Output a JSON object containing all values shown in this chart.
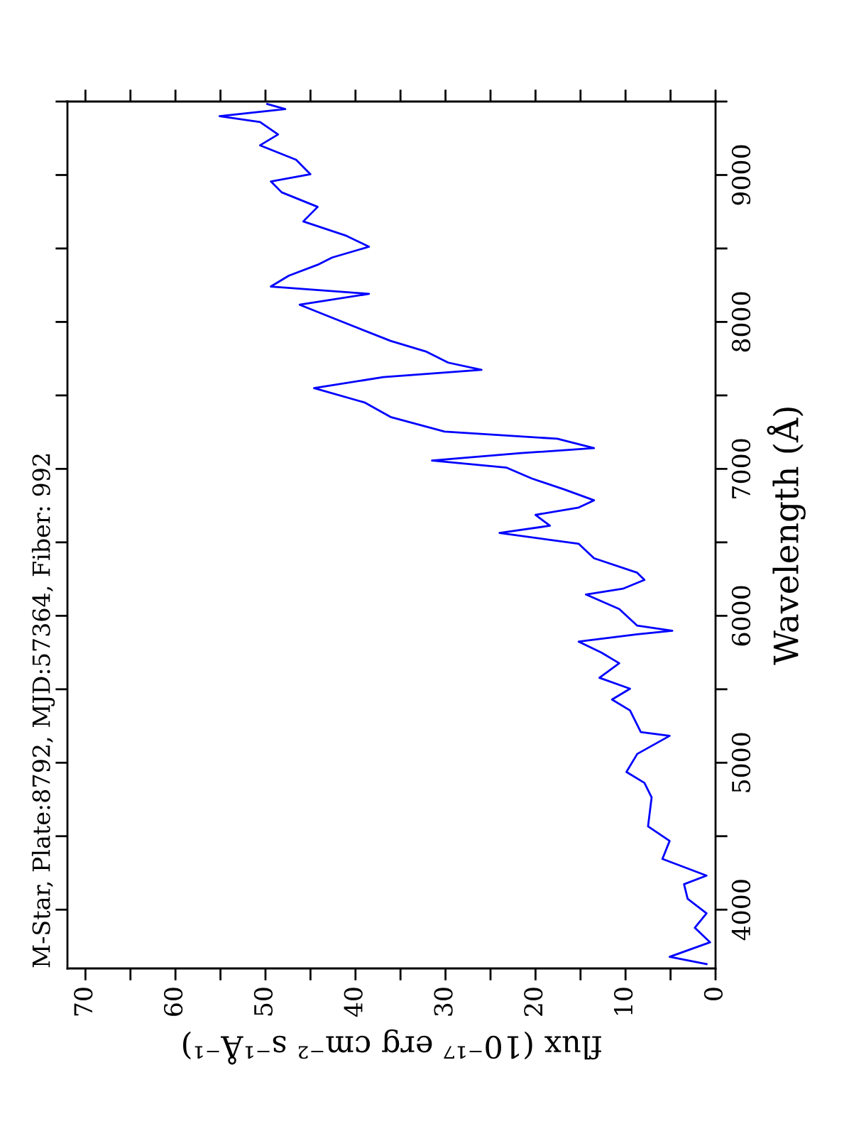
{
  "chart_data": {
    "type": "line",
    "title": "M-Star, Plate:8792, MJD:57364, Fiber: 992",
    "ylabel": "Wavelength (Å)",
    "xlabel": "flux (10⁻¹⁷ erg cm⁻² s⁻¹Å⁻¹)",
    "series": [
      {
        "color": "#0000ff",
        "x": [
          1.0,
          5.1,
          0.6,
          2.3,
          1.0,
          3.1,
          3.5,
          1.0,
          5.9,
          5.1,
          7.5,
          7.1,
          7.9,
          9.9,
          8.7,
          5.1,
          8.3,
          9.5,
          11.5,
          9.5,
          12.9,
          10.7,
          12.7,
          15.2,
          8.7,
          4.8,
          8.7,
          10.7,
          14.4,
          10.3,
          7.9,
          8.7,
          13.5,
          15.2,
          24.0,
          18.4,
          20.0,
          15.2,
          13.5,
          16.8,
          20.4,
          23.2,
          31.5,
          21.6,
          13.5,
          17.6,
          30.1,
          36.1,
          39.0,
          44.6,
          36.9,
          26.0,
          29.7,
          32.1,
          36.1,
          42.2,
          46.2,
          38.5,
          49.4,
          47.4,
          44.2,
          42.6,
          38.5,
          41.0,
          45.8,
          44.2,
          48.2,
          49.4,
          45.0,
          46.6,
          50.6,
          48.6,
          50.6,
          55.1,
          47.8,
          49.8
        ],
        "values": [
          3630,
          3679,
          3778,
          3877,
          3975,
          4074,
          4173,
          4232,
          4345,
          4468,
          4567,
          4764,
          4863,
          4937,
          5060,
          5183,
          5208,
          5356,
          5430,
          5504,
          5578,
          5677,
          5750,
          5824,
          5874,
          5898,
          5933,
          6046,
          6145,
          6184,
          6244,
          6293,
          6392,
          6490,
          6564,
          6613,
          6687,
          6737,
          6786,
          6860,
          6934,
          7008,
          7057,
          7107,
          7141,
          7205,
          7254,
          7353,
          7452,
          7550,
          7624,
          7674,
          7723,
          7797,
          7871,
          8019,
          8117,
          8191,
          8241,
          8315,
          8389,
          8438,
          8512,
          8586,
          8684,
          8783,
          8882,
          8956,
          9005,
          9104,
          9202,
          9276,
          9360,
          9400,
          9449,
          9483
        ]
      }
    ],
    "ylim": [
      3600,
      9500
    ],
    "yticks": [
      4000,
      5000,
      6000,
      7000,
      8000,
      9000
    ],
    "xlim": [
      72,
      0
    ],
    "xticks": [
      0,
      10,
      20,
      30,
      40,
      50,
      60,
      70
    ],
    "grid": false,
    "legend": false,
    "line_style": "solid",
    "marker": "none"
  }
}
